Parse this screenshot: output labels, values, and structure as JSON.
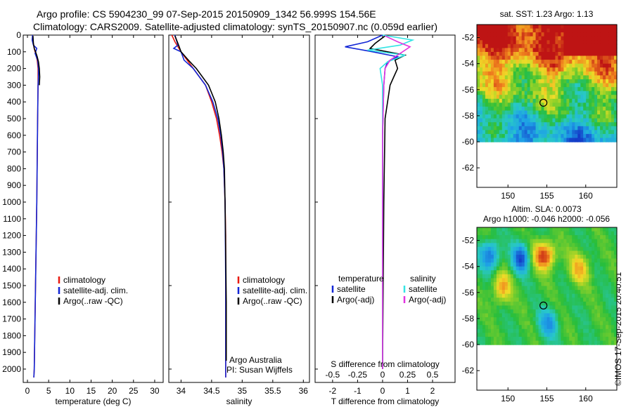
{
  "header": {
    "line1": "Argo profile: CS 5904230_99 07-Sep-2015 20150909_1342 56.999S 154.56E",
    "line2": "Climatology: CARS2009. Satellite-adjusted climatology: synTS_20150907.nc (0.059d earlier)"
  },
  "stamp": "©IMOS 17-Sep-2015 20:40:51",
  "colors": {
    "clim": "#e8190f",
    "sat": "#1226d6",
    "argo": "#000000",
    "sal_sat": "#34e4e4",
    "sal_argo": "#e234e0"
  },
  "chart_data": [
    {
      "type": "line",
      "name": "temperature",
      "xlabel": "temperature (deg C)",
      "ylabel": "",
      "xlim": [
        -1,
        32
      ],
      "ylim": [
        2080,
        0
      ],
      "xticks": [
        0,
        5,
        10,
        15,
        20,
        25,
        30
      ],
      "yticks": [
        0,
        100,
        200,
        300,
        400,
        500,
        600,
        700,
        800,
        900,
        1000,
        1100,
        1200,
        1300,
        1400,
        1500,
        1600,
        1700,
        1800,
        1900,
        2000
      ],
      "legend": [
        "climatology",
        "satellite-adj. clim.",
        "Argo(..raw -QC)"
      ],
      "series": [
        {
          "name": "climatology",
          "color_key": "clim",
          "depth": [
            0,
            40,
            80,
            120,
            150,
            200,
            250,
            300,
            500,
            1000,
            1500,
            2000,
            2050
          ],
          "values": [
            1.2,
            1.3,
            1.6,
            2.0,
            2.3,
            2.5,
            2.5,
            2.5,
            2.4,
            2.2,
            1.9,
            1.6,
            1.5
          ]
        },
        {
          "name": "satellite-adj. clim.",
          "color_key": "sat",
          "depth": [
            0,
            30,
            60,
            80,
            110,
            150,
            200,
            250,
            300,
            500,
            1000,
            1500,
            2000,
            2050
          ],
          "values": [
            1.2,
            1.1,
            1.4,
            2.2,
            1.8,
            2.4,
            2.6,
            2.6,
            2.5,
            2.4,
            2.2,
            1.9,
            1.6,
            1.5
          ]
        },
        {
          "name": "Argo(..raw -QC)",
          "color_key": "argo",
          "depth": [
            5,
            50,
            80,
            100,
            130,
            160,
            200,
            250,
            300
          ],
          "values": [
            1.3,
            1.4,
            1.6,
            1.9,
            2.3,
            2.6,
            2.8,
            2.9,
            2.8
          ]
        }
      ]
    },
    {
      "type": "line",
      "name": "salinity",
      "xlabel": "salinity",
      "xlim": [
        33.8,
        36.1
      ],
      "ylim": [
        2080,
        0
      ],
      "xticks": [
        34,
        34.5,
        35,
        35.5,
        36
      ],
      "legend": [
        "climatology",
        "satellite-adj. clim.",
        "Argo(..raw -QC)"
      ],
      "annotation": [
        "Argo Australia",
        "PI: Susan Wijffels"
      ],
      "series": [
        {
          "name": "climatology",
          "color_key": "clim",
          "depth": [
            0,
            40,
            100,
            200,
            300,
            400,
            500,
            600,
            700,
            800,
            900,
            1000,
            1200,
            1500,
            2050
          ],
          "values": [
            33.85,
            33.9,
            34.0,
            34.2,
            34.4,
            34.5,
            34.58,
            34.63,
            34.67,
            34.7,
            34.71,
            34.72,
            34.73,
            34.73,
            34.73
          ]
        },
        {
          "name": "satellite-adj. clim.",
          "color_key": "sat",
          "depth": [
            0,
            60,
            80,
            100,
            150,
            200,
            300,
            400,
            500,
            600,
            700,
            800,
            1000,
            1500,
            2050
          ],
          "values": [
            33.9,
            33.95,
            33.88,
            34.0,
            34.05,
            34.2,
            34.4,
            34.52,
            34.6,
            34.65,
            34.68,
            34.7,
            34.72,
            34.73,
            34.73
          ]
        },
        {
          "name": "Argo(..raw -QC)",
          "color_key": "argo",
          "depth": [
            5,
            50,
            100,
            150,
            200,
            300,
            400,
            500,
            600,
            700,
            800,
            1000,
            1300,
            1600,
            1950
          ],
          "values": [
            33.9,
            33.95,
            34.0,
            34.12,
            34.25,
            34.45,
            34.56,
            34.62,
            34.66,
            34.69,
            34.71,
            34.72,
            34.73,
            34.74,
            34.74
          ]
        }
      ]
    },
    {
      "type": "line",
      "name": "differences",
      "xlabel": "T difference from climatology",
      "xlim": [
        -2.7,
        2.9
      ],
      "ylim": [
        2080,
        0
      ],
      "xticks": [
        -2,
        -1,
        0,
        1,
        2
      ],
      "top_axis_label": "S difference from climatology",
      "top_ticks": [
        "-0.5",
        "-0.25",
        "0",
        "0.25",
        "0.5"
      ],
      "top_tick_positions": [
        -2,
        -1,
        0,
        1,
        2
      ],
      "legend_left": {
        "title": "temperature",
        "items": [
          "satellite",
          "Argo(-adj)"
        ]
      },
      "legend_right": {
        "title": "salinity",
        "items": [
          "satellite",
          "Argo(-adj)"
        ]
      },
      "series": [
        {
          "name": "temperature satellite",
          "color_key": "sat",
          "depth": [
            0,
            40,
            70,
            100,
            130,
            160,
            200,
            300,
            600,
            1000,
            2000
          ],
          "values": [
            0,
            -0.6,
            -1.5,
            -0.4,
            0.6,
            0.2,
            0.1,
            0.05,
            0.0,
            0.0,
            0.0
          ]
        },
        {
          "name": "temperature Argo(-adj)",
          "color_key": "argo",
          "depth": [
            5,
            50,
            80,
            120,
            150,
            200,
            250,
            300,
            500,
            1000,
            2000
          ],
          "values": [
            0.1,
            -0.3,
            -0.5,
            0.9,
            0.5,
            0.6,
            0.45,
            0.3,
            0.1,
            0.05,
            0.0
          ]
        },
        {
          "name": "salinity satellite",
          "color_key": "sal_sat",
          "depth": [
            0,
            30,
            60,
            90,
            120,
            160,
            200,
            300,
            600,
            1000,
            2000
          ],
          "values": [
            0,
            1.2,
            0.7,
            -0.6,
            0.9,
            0.2,
            -0.1,
            0.0,
            0.0,
            0.0,
            0.0
          ]
        },
        {
          "name": "salinity Argo(-adj)",
          "color_key": "sal_argo",
          "depth": [
            5,
            40,
            70,
            100,
            150,
            200,
            300,
            600,
            1000,
            2000
          ],
          "values": [
            0.1,
            0.6,
            1.1,
            0.8,
            0.3,
            0.1,
            0.05,
            0.0,
            0.0,
            0.0
          ]
        }
      ]
    },
    {
      "type": "heatmap",
      "name": "sst-map",
      "title": "sat. SST: 1.23 Argo: 1.13",
      "xlim": [
        146,
        164
      ],
      "ylim": [
        -63.5,
        -51
      ],
      "xticks": [
        150,
        155,
        160
      ],
      "yticks": [
        -52,
        -54,
        -56,
        -58,
        -60,
        -62
      ],
      "data_bottom_lat": -60,
      "marker": {
        "lon": 154.56,
        "lat": -57
      }
    },
    {
      "type": "heatmap",
      "name": "sla-map",
      "title_line1": "Altim. SLA: 0.0073",
      "title_line2": "Argo h1000: -0.046 h2000: -0.056",
      "xlim": [
        146,
        164
      ],
      "ylim": [
        -63.5,
        -51
      ],
      "xticks": [
        150,
        155,
        160
      ],
      "yticks": [
        -52,
        -54,
        -56,
        -58,
        -60,
        -62
      ],
      "data_bottom_lat": -60,
      "marker": {
        "lon": 154.56,
        "lat": -57
      }
    }
  ]
}
